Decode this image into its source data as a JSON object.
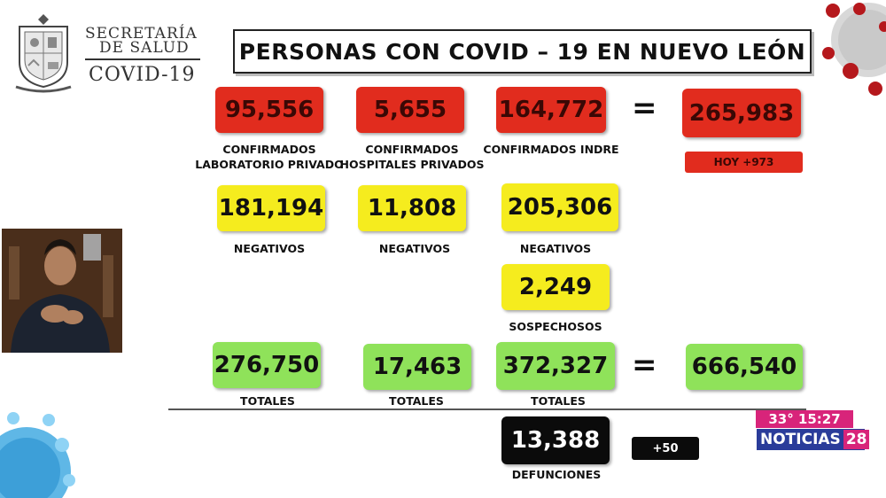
{
  "header": {
    "dept_line1": "SECRETARÍA",
    "dept_line2": "DE SALUD",
    "dept_line3": "COVID-19",
    "seal_icon": "state-seal-icon",
    "title": "PERSONAS CON COVID – 19 EN NUEVO LEÓN"
  },
  "confirmed": {
    "lab_privado": {
      "value": "95,556",
      "label1": "CONFIRMADOS",
      "label2": "LABORATORIO PRIVADO"
    },
    "hosp_privados": {
      "value": "5,655",
      "label1": "CONFIRMADOS",
      "label2": "HOSPITALES PRIVADOS"
    },
    "indre": {
      "value": "164,772",
      "label1": "CONFIRMADOS INDRE"
    },
    "equals": "=",
    "total": {
      "value": "265,983",
      "today": "HOY +973"
    }
  },
  "negatives": {
    "lab_privado": {
      "value": "181,194",
      "label": "NEGATIVOS"
    },
    "hosp_privados": {
      "value": "11,808",
      "label": "NEGATIVOS"
    },
    "indre": {
      "value": "205,306",
      "label": "NEGATIVOS"
    }
  },
  "suspects": {
    "value": "2,249",
    "label": "SOSPECHOSOS"
  },
  "totals": {
    "lab_privado": {
      "value": "276,750",
      "label": "TOTALES"
    },
    "hosp_privados": {
      "value": "17,463",
      "label": "TOTALES"
    },
    "indre": {
      "value": "372,327",
      "label": "TOTALES"
    },
    "equals": "=",
    "grand": {
      "value": "666,540"
    }
  },
  "deaths": {
    "value": "13,388",
    "label": "DEFUNCIONES",
    "today": "+50"
  },
  "channel_bug": {
    "temp_time": "33° 15:27",
    "name": "NOTICIAS",
    "number": "28"
  },
  "colors": {
    "red": "#e12c1e",
    "yellow": "#f5ec1e",
    "green": "#8fe25a",
    "black": "#0b0b0b",
    "bug_pink": "#d8247a",
    "bug_blue": "#2a3c9a"
  }
}
